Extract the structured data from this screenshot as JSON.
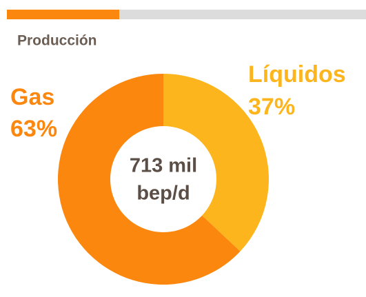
{
  "chart_data": {
    "type": "donut",
    "title": "Producción",
    "categories": [
      "Líquidos",
      "Gas"
    ],
    "values": [
      37,
      63
    ],
    "value_labels": [
      "37%",
      "63%"
    ],
    "colors": [
      "#fdb51e",
      "#fb870e"
    ],
    "center_label": [
      "713 mil",
      "bep/d"
    ]
  }
}
